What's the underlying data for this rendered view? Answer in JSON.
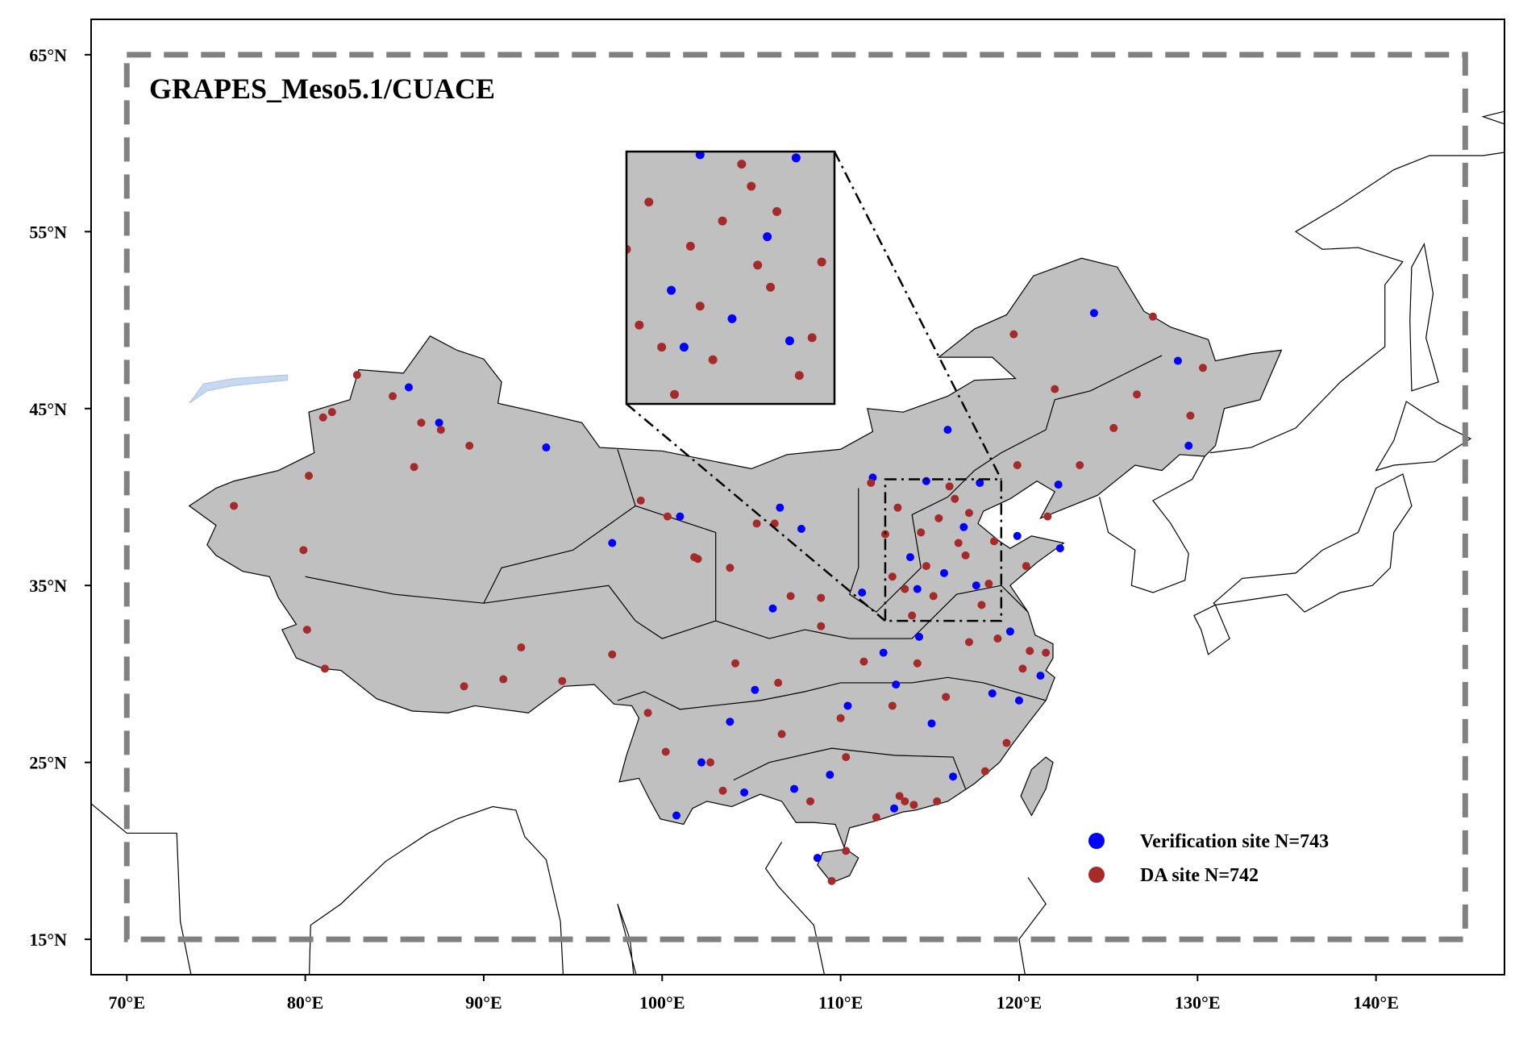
{
  "title": "GRAPES_Meso5.1/CUACE",
  "axes": {
    "xlim": [
      68,
      147.2
    ],
    "ylim": [
      13,
      67
    ],
    "xticks": [
      {
        "value": 70,
        "label": "70°E"
      },
      {
        "value": 80,
        "label": "80°E"
      },
      {
        "value": 90,
        "label": "90°E"
      },
      {
        "value": 100,
        "label": "100°E"
      },
      {
        "value": 110,
        "label": "110°E"
      },
      {
        "value": 120,
        "label": "120°E"
      },
      {
        "value": 130,
        "label": "130°E"
      },
      {
        "value": 140,
        "label": "140°E"
      }
    ],
    "yticks": [
      {
        "value": 15,
        "label": "15°N"
      },
      {
        "value": 25,
        "label": "25°N"
      },
      {
        "value": 35,
        "label": "35°N"
      },
      {
        "value": 45,
        "label": "45°N"
      },
      {
        "value": 55,
        "label": "55°N"
      },
      {
        "value": 65,
        "label": "65°N"
      }
    ]
  },
  "domain_box": {
    "lon": [
      70,
      145
    ],
    "lat": [
      15,
      65
    ]
  },
  "zoom_box": {
    "lon": [
      112.5,
      119
    ],
    "lat": [
      33,
      41
    ]
  },
  "sites": [
    {
      "name": "Verification site N=743",
      "color": "#0000ff",
      "points": [
        [
          85.8,
          46.2
        ],
        [
          87.5,
          44.2
        ],
        [
          93.5,
          42.8
        ],
        [
          97.2,
          37.4
        ],
        [
          101,
          38.9
        ],
        [
          102.2,
          25
        ],
        [
          104.6,
          23.3
        ],
        [
          106.6,
          39.4
        ],
        [
          107.8,
          38.2
        ],
        [
          111.8,
          41.1
        ],
        [
          116,
          43.8
        ],
        [
          122.2,
          40.7
        ],
        [
          124.2,
          50.4
        ],
        [
          128.9,
          47.7
        ],
        [
          129.5,
          42.9
        ],
        [
          119.9,
          37.8
        ],
        [
          122.3,
          37.1
        ],
        [
          117.6,
          35
        ],
        [
          114.3,
          34.8
        ],
        [
          113.1,
          29.4
        ],
        [
          115.1,
          27.2
        ],
        [
          116.3,
          24.2
        ],
        [
          113,
          22.4
        ],
        [
          109.4,
          24.3
        ],
        [
          107.4,
          23.5
        ],
        [
          105.2,
          29.1
        ],
        [
          103.8,
          27.3
        ],
        [
          106.2,
          33.7
        ],
        [
          111.2,
          34.6
        ],
        [
          110.4,
          28.2
        ],
        [
          118.5,
          28.9
        ],
        [
          120,
          28.5
        ],
        [
          121.2,
          29.9
        ],
        [
          119.5,
          32.4
        ],
        [
          114.8,
          40.9
        ],
        [
          117.8,
          40.8
        ],
        [
          100.8,
          22
        ],
        [
          108.7,
          19.6
        ],
        [
          114.4,
          32.1
        ],
        [
          112.4,
          31.2
        ],
        [
          116.9,
          38.3
        ],
        [
          113.9,
          36.6
        ],
        [
          115.8,
          35.7
        ]
      ]
    },
    {
      "name": "DA site N=742",
      "color": "#a52a2a",
      "points": [
        [
          76,
          39.5
        ],
        [
          79.9,
          37
        ],
        [
          80.2,
          41.2
        ],
        [
          81,
          44.5
        ],
        [
          81.5,
          44.8
        ],
        [
          82.9,
          46.9
        ],
        [
          84.9,
          45.7
        ],
        [
          86.5,
          44.2
        ],
        [
          87.6,
          43.8
        ],
        [
          89.2,
          42.9
        ],
        [
          86.1,
          41.7
        ],
        [
          80.1,
          32.5
        ],
        [
          81.1,
          30.3
        ],
        [
          88.9,
          29.3
        ],
        [
          91.1,
          29.7
        ],
        [
          92.1,
          31.5
        ],
        [
          94.4,
          29.6
        ],
        [
          97.2,
          31.1
        ],
        [
          98.8,
          39.8
        ],
        [
          100.3,
          38.9
        ],
        [
          101.8,
          36.6
        ],
        [
          103.8,
          36
        ],
        [
          102,
          36.5
        ],
        [
          105.3,
          38.5
        ],
        [
          106.3,
          38.5
        ],
        [
          108.9,
          34.3
        ],
        [
          107.2,
          34.4
        ],
        [
          104.1,
          30.6
        ],
        [
          106.5,
          29.5
        ],
        [
          102.7,
          25
        ],
        [
          106.7,
          26.6
        ],
        [
          110.3,
          25.3
        ],
        [
          108.3,
          22.8
        ],
        [
          113.3,
          23.1
        ],
        [
          113.6,
          22.8
        ],
        [
          114.1,
          22.6
        ],
        [
          112.9,
          28.2
        ],
        [
          114.3,
          30.6
        ],
        [
          115.9,
          28.7
        ],
        [
          117.2,
          31.8
        ],
        [
          118.8,
          32
        ],
        [
          120.2,
          30.3
        ],
        [
          121.5,
          31.2
        ],
        [
          120.6,
          31.3
        ],
        [
          119.3,
          26.1
        ],
        [
          118.1,
          24.5
        ],
        [
          117,
          36.7
        ],
        [
          116.4,
          39.9
        ],
        [
          117.2,
          39.1
        ],
        [
          114.5,
          38
        ],
        [
          112.5,
          37.9
        ],
        [
          113.6,
          34.8
        ],
        [
          111.7,
          40.8
        ],
        [
          123.4,
          41.8
        ],
        [
          125.3,
          43.9
        ],
        [
          126.6,
          45.8
        ],
        [
          129.6,
          44.6
        ],
        [
          130.3,
          47.3
        ],
        [
          127.5,
          50.2
        ],
        [
          119.7,
          49.2
        ],
        [
          122,
          46.1
        ],
        [
          119.9,
          41.8
        ],
        [
          121.6,
          38.9
        ],
        [
          120.4,
          36.1
        ],
        [
          118.3,
          35.1
        ],
        [
          115.5,
          38.8
        ],
        [
          110,
          27.5
        ],
        [
          111.3,
          30.7
        ],
        [
          108.9,
          32.7
        ],
        [
          103.4,
          23.4
        ],
        [
          100.2,
          25.6
        ],
        [
          99.2,
          27.8
        ],
        [
          110.3,
          20
        ],
        [
          109.5,
          18.3
        ],
        [
          112,
          21.9
        ],
        [
          115.4,
          22.8
        ],
        [
          114.8,
          36.1
        ],
        [
          116.6,
          37.4
        ],
        [
          113.2,
          39.4
        ],
        [
          117.9,
          33.9
        ],
        [
          114,
          33.3
        ],
        [
          118.6,
          37.5
        ],
        [
          112.9,
          35.5
        ],
        [
          115.2,
          34.4
        ],
        [
          116.1,
          40.6
        ]
      ]
    }
  ]
}
